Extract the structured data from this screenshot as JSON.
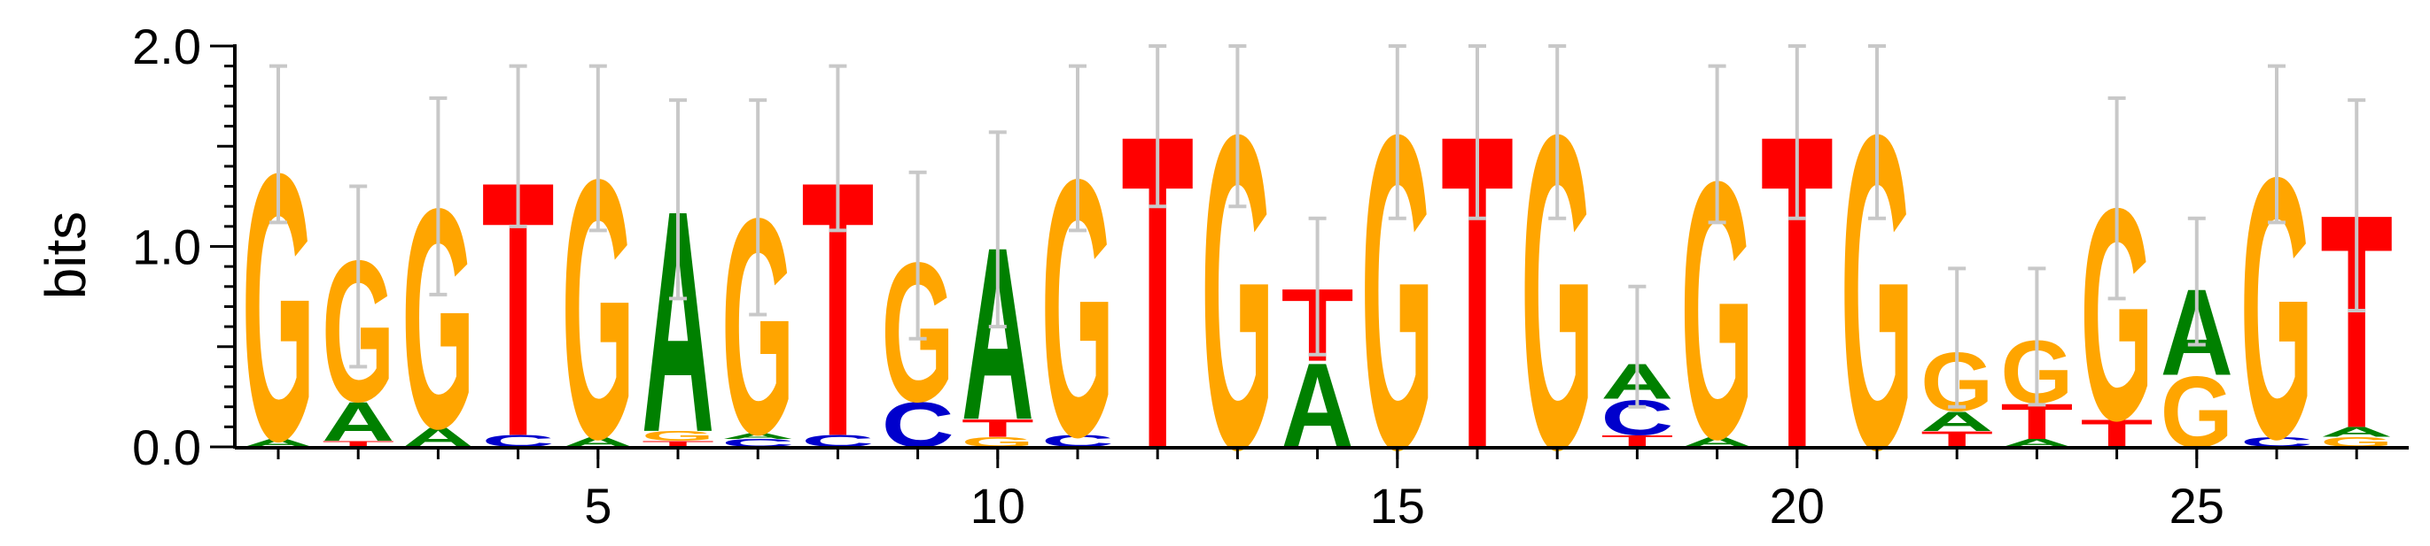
{
  "chart_data": {
    "type": "sequence-logo",
    "ylabel": "bits",
    "ylim": [
      0,
      2.0
    ],
    "y_ticks": [
      "0.0",
      "1.0",
      "2.0"
    ],
    "x_ticks": [
      5,
      10,
      15,
      20,
      25
    ],
    "x_tick_labels": [
      "5",
      "10",
      "15",
      "20",
      "25"
    ],
    "colors": {
      "A": "#008000",
      "C": "#0000cc",
      "G": "#ffa500",
      "T": "#ff0000",
      "error_bar": "#c8c8c8"
    },
    "positions": [
      {
        "pos": 1,
        "letters": [
          {
            "base": "A",
            "bits": 0.04
          },
          {
            "base": "G",
            "bits": 1.36
          }
        ],
        "error_bar": [
          1.12,
          1.9
        ]
      },
      {
        "pos": 2,
        "letters": [
          {
            "base": "T",
            "bits": 0.03
          },
          {
            "base": "A",
            "bits": 0.2
          },
          {
            "base": "G",
            "bits": 0.72
          }
        ],
        "error_bar": [
          0.4,
          1.3
        ]
      },
      {
        "pos": 3,
        "letters": [
          {
            "base": "A",
            "bits": 0.1
          },
          {
            "base": "G",
            "bits": 1.12
          }
        ],
        "error_bar": [
          0.76,
          1.74
        ]
      },
      {
        "pos": 4,
        "letters": [
          {
            "base": "C",
            "bits": 0.06
          },
          {
            "base": "T",
            "bits": 1.3
          }
        ],
        "error_bar": [
          1.1,
          1.9
        ]
      },
      {
        "pos": 5,
        "letters": [
          {
            "base": "A",
            "bits": 0.05
          },
          {
            "base": "G",
            "bits": 1.32
          }
        ],
        "error_bar": [
          1.08,
          1.9
        ]
      },
      {
        "pos": 6,
        "letters": [
          {
            "base": "T",
            "bits": 0.03
          },
          {
            "base": "G",
            "bits": 0.05
          },
          {
            "base": "A",
            "bits": 1.13
          }
        ],
        "error_bar": [
          0.74,
          1.73
        ]
      },
      {
        "pos": 7,
        "letters": [
          {
            "base": "C",
            "bits": 0.04
          },
          {
            "base": "A",
            "bits": 0.03
          },
          {
            "base": "G",
            "bits": 1.1
          }
        ],
        "error_bar": [
          0.66,
          1.73
        ]
      },
      {
        "pos": 8,
        "letters": [
          {
            "base": "C",
            "bits": 0.06
          },
          {
            "base": "T",
            "bits": 1.3
          }
        ],
        "error_bar": [
          1.08,
          1.9
        ]
      },
      {
        "pos": 9,
        "letters": [
          {
            "base": "C",
            "bits": 0.23
          },
          {
            "base": "G",
            "bits": 0.71
          }
        ],
        "error_bar": [
          0.54,
          1.37
        ]
      },
      {
        "pos": 10,
        "letters": [
          {
            "base": "G",
            "bits": 0.05
          },
          {
            "base": "T",
            "bits": 0.09
          },
          {
            "base": "A",
            "bits": 0.88
          }
        ],
        "error_bar": [
          0.6,
          1.57
        ]
      },
      {
        "pos": 11,
        "letters": [
          {
            "base": "C",
            "bits": 0.06
          },
          {
            "base": "G",
            "bits": 1.31
          }
        ],
        "error_bar": [
          1.08,
          1.9
        ]
      },
      {
        "pos": 12,
        "letters": [
          {
            "base": "T",
            "bits": 1.6
          }
        ],
        "error_bar": [
          1.2,
          2.0
        ]
      },
      {
        "pos": 13,
        "letters": [
          {
            "base": "G",
            "bits": 1.6
          }
        ],
        "error_bar": [
          1.2,
          2.0
        ]
      },
      {
        "pos": 14,
        "letters": [
          {
            "base": "A",
            "bits": 0.43
          },
          {
            "base": "T",
            "bits": 0.37
          }
        ],
        "error_bar": [
          0.46,
          1.14
        ]
      },
      {
        "pos": 15,
        "letters": [
          {
            "base": "G",
            "bits": 1.6
          }
        ],
        "error_bar": [
          1.14,
          2.0
        ]
      },
      {
        "pos": 16,
        "letters": [
          {
            "base": "T",
            "bits": 1.6
          }
        ],
        "error_bar": [
          1.14,
          2.0
        ]
      },
      {
        "pos": 17,
        "letters": [
          {
            "base": "G",
            "bits": 1.6
          }
        ],
        "error_bar": [
          1.14,
          2.0
        ]
      },
      {
        "pos": 18,
        "letters": [
          {
            "base": "T",
            "bits": 0.06
          },
          {
            "base": "C",
            "bits": 0.18
          },
          {
            "base": "A",
            "bits": 0.18
          }
        ],
        "error_bar": [
          0.2,
          0.8
        ]
      },
      {
        "pos": 19,
        "letters": [
          {
            "base": "A",
            "bits": 0.05
          },
          {
            "base": "G",
            "bits": 1.31
          }
        ],
        "error_bar": [
          1.12,
          1.9
        ]
      },
      {
        "pos": 20,
        "letters": [
          {
            "base": "T",
            "bits": 1.6
          }
        ],
        "error_bar": [
          1.14,
          2.0
        ]
      },
      {
        "pos": 21,
        "letters": [
          {
            "base": "G",
            "bits": 1.6
          }
        ],
        "error_bar": [
          1.14,
          2.0
        ]
      },
      {
        "pos": 22,
        "letters": [
          {
            "base": "T",
            "bits": 0.08
          },
          {
            "base": "A",
            "bits": 0.1
          },
          {
            "base": "G",
            "bits": 0.3
          }
        ],
        "error_bar": [
          0.2,
          0.89
        ]
      },
      {
        "pos": 23,
        "letters": [
          {
            "base": "A",
            "bits": 0.04
          },
          {
            "base": "T",
            "bits": 0.18
          },
          {
            "base": "G",
            "bits": 0.32
          }
        ],
        "error_bar": [
          0.21,
          0.89
        ]
      },
      {
        "pos": 24,
        "letters": [
          {
            "base": "T",
            "bits": 0.14
          },
          {
            "base": "G",
            "bits": 1.08
          }
        ],
        "error_bar": [
          0.74,
          1.74
        ]
      },
      {
        "pos": 25,
        "letters": [
          {
            "base": "G",
            "bits": 0.36
          },
          {
            "base": "A",
            "bits": 0.44
          }
        ],
        "error_bar": [
          0.51,
          1.14
        ]
      },
      {
        "pos": 26,
        "letters": [
          {
            "base": "C",
            "bits": 0.05
          },
          {
            "base": "G",
            "bits": 1.33
          }
        ],
        "error_bar": [
          1.12,
          1.9
        ]
      },
      {
        "pos": 27,
        "letters": [
          {
            "base": "G",
            "bits": 0.05
          },
          {
            "base": "A",
            "bits": 0.05
          },
          {
            "base": "T",
            "bits": 1.09
          }
        ],
        "error_bar": [
          0.68,
          1.73
        ]
      }
    ]
  }
}
